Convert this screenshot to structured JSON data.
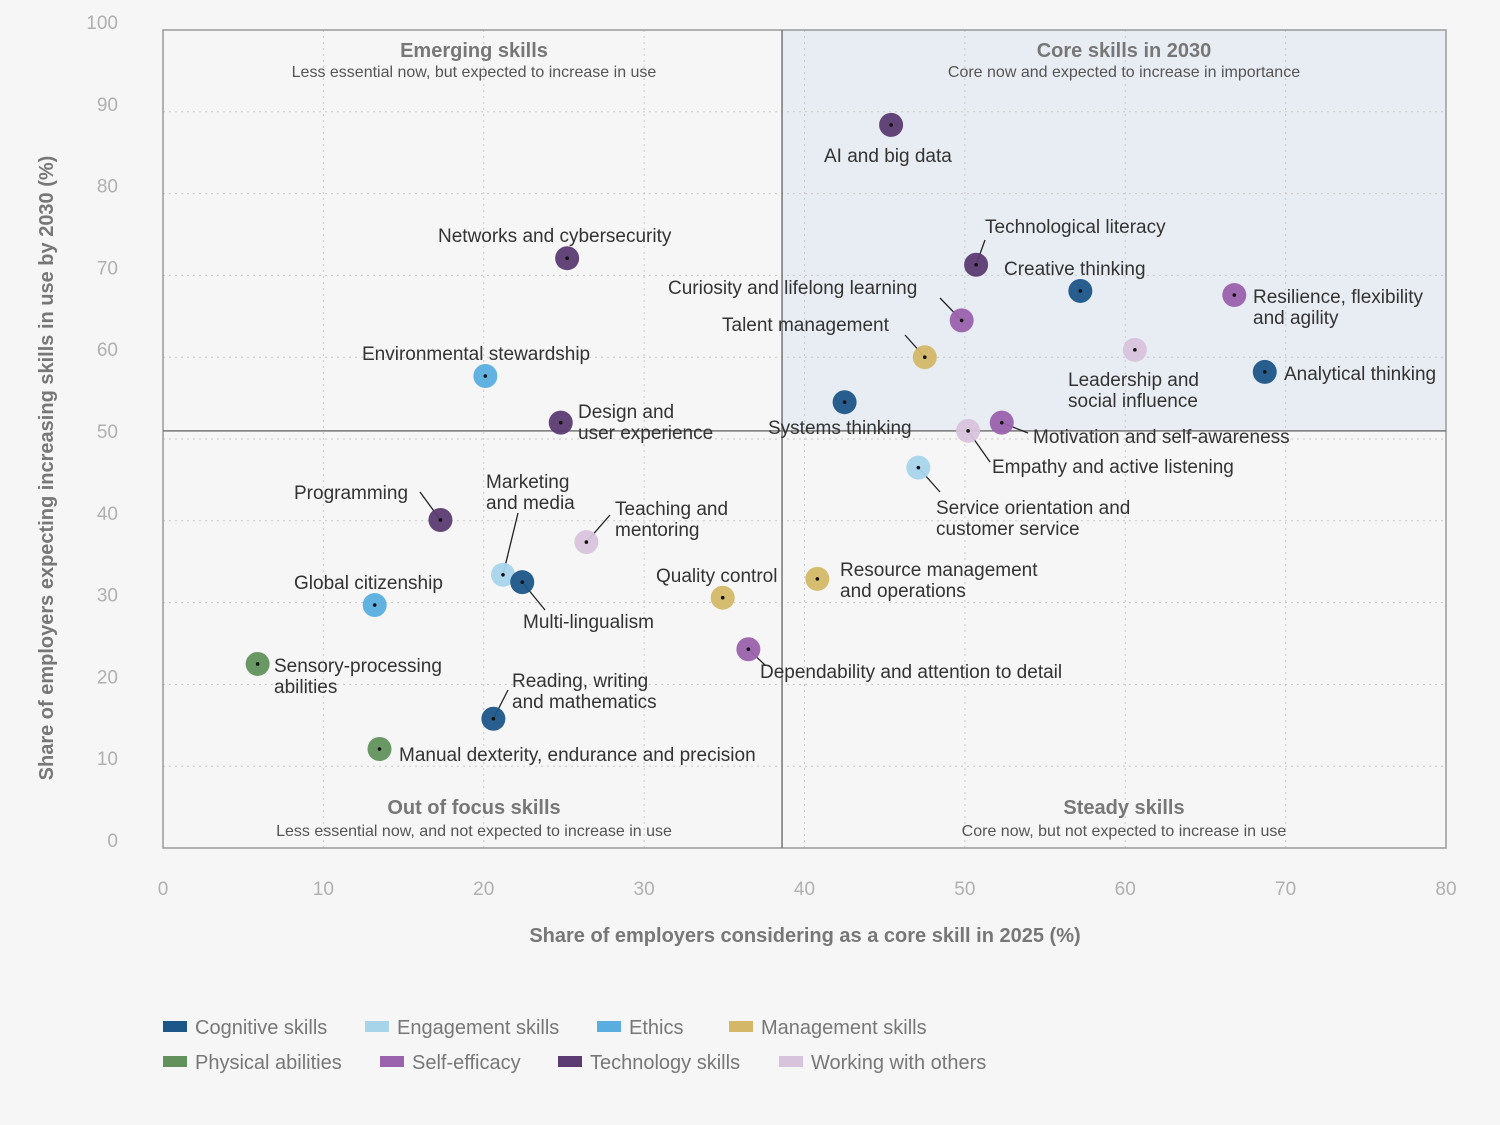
{
  "chart_data": {
    "type": "scatter",
    "xlabel": "Share of employers considering as a core skill in 2025 (%)",
    "ylabel": "Share of employers expecting increasing skills in use by 2030 (%)",
    "xlim": [
      0,
      80
    ],
    "ylim": [
      0,
      100
    ],
    "x_ticks": [
      "0",
      "10",
      "20",
      "30",
      "40",
      "50",
      "60",
      "70",
      "80"
    ],
    "y_ticks": [
      "0",
      "10",
      "20",
      "30",
      "40",
      "50",
      "60",
      "70",
      "80",
      "90",
      "100"
    ],
    "grid": true,
    "quadrant_dividers": {
      "x": 38.6,
      "y": 51
    },
    "quadrants": [
      {
        "title": "Emerging skills",
        "subtitle": "Less essential now, but expected to increase in use"
      },
      {
        "title": "Core skills in 2030",
        "subtitle": "Core now and expected to increase in importance"
      },
      {
        "title": "Out of focus skills",
        "subtitle": "Less essential now, and not expected to increase in use"
      },
      {
        "title": "Steady skills",
        "subtitle": "Core now, but not expected to increase in use"
      }
    ],
    "legend_position": "bottom-left",
    "categories": [
      {
        "name": "Cognitive skills",
        "color": "#1d5688"
      },
      {
        "name": "Engagement skills",
        "color": "#a8d4ea"
      },
      {
        "name": "Ethics",
        "color": "#5aaedf"
      },
      {
        "name": "Management skills",
        "color": "#d4b867"
      },
      {
        "name": "Physical abilities",
        "color": "#62925c"
      },
      {
        "name": "Self-efficacy",
        "color": "#9b62ad"
      },
      {
        "name": "Technology skills",
        "color": "#5c3b72"
      },
      {
        "name": "Working with others",
        "color": "#d8c3dc"
      }
    ],
    "points": [
      {
        "label": [
          "AI and big data"
        ],
        "category": 6,
        "x": 45.4,
        "y": 88.4
      },
      {
        "label": [
          "Networks and cybersecurity"
        ],
        "category": 6,
        "x": 25.2,
        "y": 72.1
      },
      {
        "label": [
          "Technological literacy"
        ],
        "category": 6,
        "x": 50.7,
        "y": 71.3
      },
      {
        "label": [
          "Creative thinking"
        ],
        "category": 0,
        "x": 57.2,
        "y": 68.1
      },
      {
        "label": [
          "Resilience, flexibility",
          "and agility"
        ],
        "category": 5,
        "x": 66.8,
        "y": 67.6
      },
      {
        "label": [
          "Curiosity and lifelong learning"
        ],
        "category": 5,
        "x": 49.8,
        "y": 64.5
      },
      {
        "label": [
          "Talent management"
        ],
        "category": 3,
        "x": 47.5,
        "y": 60.0
      },
      {
        "label": [
          "Leadership and",
          "social influence"
        ],
        "category": 7,
        "x": 60.6,
        "y": 60.9
      },
      {
        "label": [
          "Analytical thinking"
        ],
        "category": 0,
        "x": 68.7,
        "y": 58.2
      },
      {
        "label": [
          "Environmental stewardship"
        ],
        "category": 2,
        "x": 20.1,
        "y": 57.7
      },
      {
        "label": [
          "Systems thinking"
        ],
        "category": 0,
        "x": 42.5,
        "y": 54.5
      },
      {
        "label": [
          "Design and",
          "user experience"
        ],
        "category": 6,
        "x": 24.8,
        "y": 52.0
      },
      {
        "label": [
          "Motivation and self-awareness"
        ],
        "category": 5,
        "x": 52.3,
        "y": 52.0
      },
      {
        "label": [
          "Empathy and active listening"
        ],
        "category": 7,
        "x": 50.2,
        "y": 51.0
      },
      {
        "label": [
          "Service orientation and",
          "customer service"
        ],
        "category": 1,
        "x": 47.1,
        "y": 46.5
      },
      {
        "label": [
          "Programming"
        ],
        "category": 6,
        "x": 17.3,
        "y": 40.1
      },
      {
        "label": [
          "Teaching and",
          "mentoring"
        ],
        "category": 7,
        "x": 26.4,
        "y": 37.4
      },
      {
        "label": [
          "Marketing",
          "and media"
        ],
        "category": 1,
        "x": 21.2,
        "y": 33.4
      },
      {
        "label": [
          "Multi-lingualism"
        ],
        "category": 0,
        "x": 22.4,
        "y": 32.5
      },
      {
        "label": [
          "Quality control"
        ],
        "category": 3,
        "x": 34.9,
        "y": 30.6
      },
      {
        "label": [
          "Resource management",
          "and operations"
        ],
        "category": 3,
        "x": 40.8,
        "y": 32.9
      },
      {
        "label": [
          "Global citizenship"
        ],
        "category": 2,
        "x": 13.2,
        "y": 29.7
      },
      {
        "label": [
          "Dependability and attention to detail"
        ],
        "category": 5,
        "x": 36.5,
        "y": 24.3
      },
      {
        "label": [
          "Sensory-processing",
          "abilities"
        ],
        "category": 4,
        "x": 5.9,
        "y": 22.5
      },
      {
        "label": [
          "Reading, writing",
          "and mathematics"
        ],
        "category": 0,
        "x": 20.6,
        "y": 15.8
      },
      {
        "label": [
          "Manual dexterity, endurance and precision"
        ],
        "category": 4,
        "x": 13.5,
        "y": 12.1
      }
    ]
  }
}
